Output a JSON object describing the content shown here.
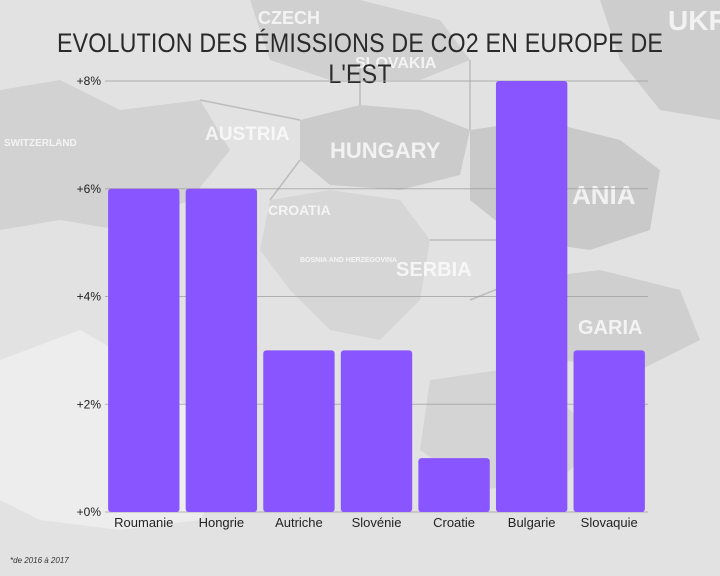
{
  "title": "EVOLUTION DES ÉMISSIONS DE CO2 EN EUROPE DE L'EST",
  "footnote": "*de 2016 à 2017",
  "background_map_labels": [
    "CZECH",
    "SLOVAKIA",
    "AUSTRIA",
    "HUNGARY",
    "SWITZERLAND",
    "CROATIA",
    "BOSNIA AND HERZEGOVINA",
    "SERBIA",
    "ANIA",
    "GARIA",
    "UKR"
  ],
  "chart_data": {
    "type": "bar",
    "title": "EVOLUTION DES ÉMISSIONS DE CO2 EN EUROPE DE L'EST",
    "categories": [
      "Roumanie",
      "Hongrie",
      "Autriche",
      "Slovénie",
      "Croatie",
      "Bulgarie",
      "Slovaquie"
    ],
    "values": [
      6,
      6,
      3,
      3,
      1,
      8,
      3
    ],
    "unit": "%",
    "yticks": [
      "+0%",
      "+2%",
      "+4%",
      "+6%",
      "+8%"
    ],
    "ytick_values": [
      0,
      2,
      4,
      6,
      8
    ],
    "ylim": [
      0,
      8
    ],
    "xlabel": "",
    "ylabel": "",
    "grid": true,
    "bar_color": "#8855ff"
  }
}
